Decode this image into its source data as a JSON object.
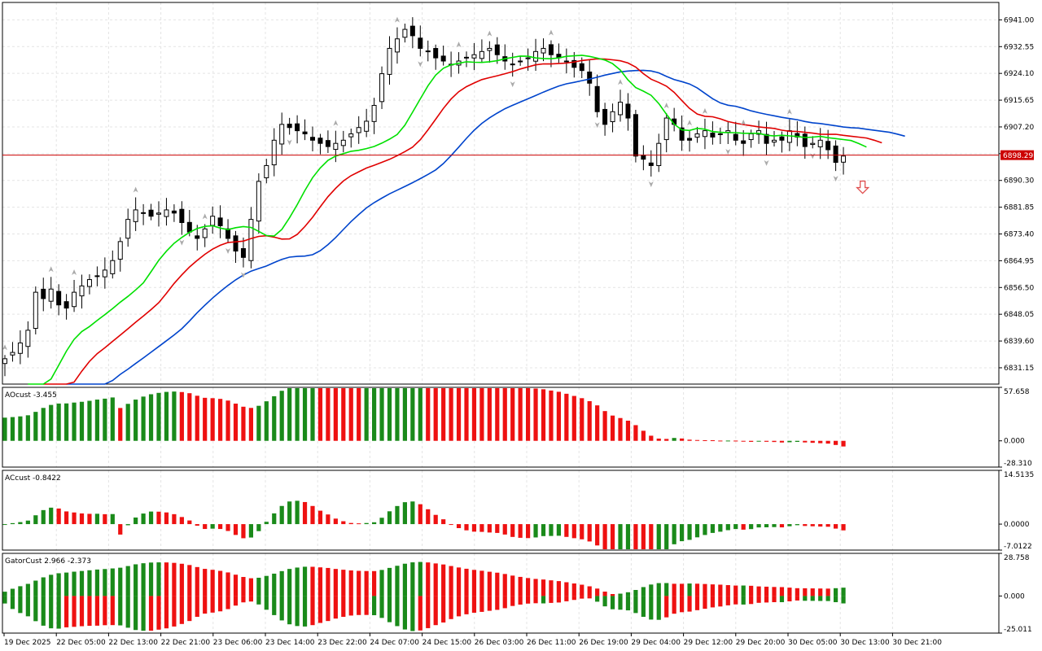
{
  "chart_data": [
    {
      "type": "candlestick",
      "pane": "price",
      "ylim": [
        6826.0,
        6946.5
      ],
      "yticks": [
        "6941.00",
        "6932.55",
        "6924.10",
        "6915.65",
        "6907.20",
        "6898.75",
        "6890.30",
        "6881.85",
        "6873.40",
        "6864.95",
        "6856.50",
        "6848.05",
        "6839.60",
        "6831.15"
      ],
      "current_price": 6898.29,
      "current_price_label": "6898.29",
      "grid": true,
      "colors": {
        "bull": "#ffffff",
        "bear": "#000000",
        "outline": "#000000",
        "lips": "#00e000",
        "teeth": "#e00000",
        "jaw": "#0044cc",
        "price_line": "#cc0000",
        "fractal": "#aaaaaa",
        "arrow": "#e05050"
      },
      "closes": [
        6834,
        6836,
        6839,
        6843,
        6855,
        6853,
        6856,
        6851,
        6850,
        6855,
        6857,
        6859,
        6860,
        6862,
        6865,
        6871,
        6878,
        6881,
        6880,
        6879,
        6880,
        6881,
        6880,
        6877,
        6874,
        6872,
        6875,
        6879,
        6876,
        6872,
        6868,
        6866,
        6878,
        6890,
        6895,
        6903,
        6908,
        6907,
        6906,
        6905,
        6903,
        6902,
        6901,
        6902,
        6903,
        6905,
        6907,
        6909,
        6914,
        6924,
        6932,
        6935,
        6938,
        6936,
        6932,
        6931,
        6929,
        6928,
        6927,
        6928,
        6929,
        6930,
        6931,
        6932,
        6930,
        6928,
        6927,
        6928,
        6929,
        6931,
        6932,
        6930,
        6929,
        6928,
        6926,
        6925,
        6921,
        6912,
        6908,
        6912,
        6915,
        6910,
        6898,
        6897,
        6895,
        6902,
        6910,
        6908,
        6903,
        6903,
        6905,
        6906,
        6904,
        6905,
        6906,
        6903,
        6902,
        6905,
        6906,
        6902,
        6903,
        6903,
        6906,
        6904,
        6901,
        6902,
        6903,
        6900,
        6896,
        6898
      ],
      "swings": [
        [
          0,
          6834
        ],
        [
          6,
          6855
        ],
        [
          9,
          6850
        ],
        [
          17,
          6881
        ],
        [
          23,
          6877
        ],
        [
          26,
          6874
        ],
        [
          29,
          6872
        ],
        [
          31,
          6863
        ],
        [
          37,
          6907
        ],
        [
          43,
          6901
        ],
        [
          51,
          6937
        ],
        [
          54,
          6932
        ],
        [
          59,
          6927
        ],
        [
          63,
          6932
        ],
        [
          66,
          6927
        ],
        [
          71,
          6932
        ],
        [
          77,
          6920
        ],
        [
          80,
          6915
        ],
        [
          84,
          6893
        ],
        [
          86,
          6909
        ],
        [
          89,
          6903
        ],
        [
          91,
          6907
        ],
        [
          94,
          6900
        ],
        [
          96,
          6906
        ],
        [
          99,
          6899
        ],
        [
          102,
          6907
        ],
        [
          105,
          6900
        ],
        [
          108,
          6898
        ]
      ],
      "alligator": {
        "jaw_label": "",
        "teeth_label": "",
        "lips_label": ""
      },
      "signal_arrow": "down"
    },
    {
      "type": "bar",
      "pane": "AOcust",
      "title": "AOcust -3.455",
      "ylim": [
        -28.31,
        57.658
      ],
      "yticks": [
        "57.658",
        "0.000",
        "-28.310"
      ]
    },
    {
      "type": "bar",
      "pane": "ACcust",
      "title": "ACcust -0.8422",
      "ylim": [
        -7.0122,
        14.5135
      ],
      "yticks": [
        "14.5135",
        "0.0000",
        "-7.0122"
      ]
    },
    {
      "type": "bar",
      "pane": "GatorCust",
      "title": "GatorCust 2.966 -2.373",
      "ylim": [
        -25.011,
        28.758
      ],
      "yticks": [
        "28.758",
        "0.000",
        "-25.011"
      ]
    }
  ],
  "time_axis": [
    "19 Dec 2025",
    "22 Dec 05:00",
    "22 Dec 13:00",
    "22 Dec 21:00",
    "23 Dec 06:00",
    "23 Dec 14:00",
    "23 Dec 22:00",
    "24 Dec 07:00",
    "24 Dec 15:00",
    "26 Dec 03:00",
    "26 Dec 11:00",
    "26 Dec 19:00",
    "29 Dec 04:00",
    "29 Dec 12:00",
    "29 Dec 20:00",
    "30 Dec 05:00",
    "30 Dec 13:00",
    "30 Dec 21:00"
  ],
  "ui": {
    "price_label": "6898.29"
  }
}
